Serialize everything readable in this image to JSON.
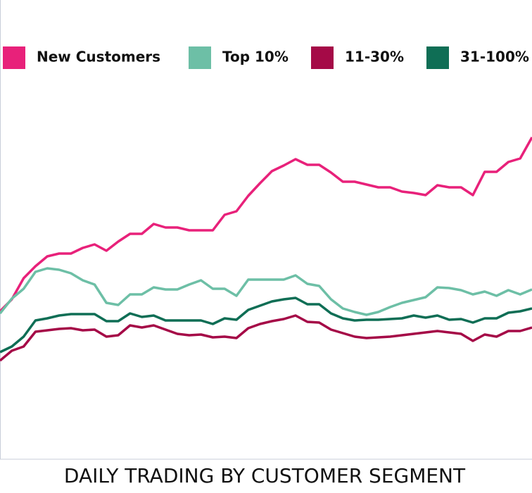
{
  "chart_data": {
    "type": "line",
    "title": "DAILY TRADING BY CUSTOMER SEGMENT",
    "categories": [
      null,
      null,
      null,
      null,
      null,
      null,
      null,
      null,
      null,
      null,
      null,
      null,
      null,
      null,
      null,
      null,
      null,
      null,
      null,
      null,
      null,
      null,
      null,
      null,
      null,
      null,
      null,
      null,
      null,
      null,
      null,
      null,
      null,
      null,
      null,
      null,
      null,
      null,
      null,
      null,
      null,
      null,
      null,
      null,
      null,
      null
    ],
    "ylim": [
      0,
      100
    ],
    "series": [
      {
        "name": "New Customers",
        "color": "#e8217a",
        "values": [
          41.6,
          45,
          51,
          54.4,
          57.2,
          58,
          58,
          59.6,
          60.6,
          58.8,
          61.4,
          63.6,
          63.6,
          66.4,
          65.4,
          65.4,
          64.6,
          64.6,
          64.6,
          69,
          70,
          74.4,
          78,
          81.4,
          83,
          84.8,
          83.2,
          83.2,
          81,
          78.4,
          78.4,
          77.6,
          76.8,
          76.8,
          75.6,
          75.2,
          74.6,
          77.4,
          76.8,
          76.8,
          74.6,
          81.2,
          81.2,
          84,
          85,
          91
        ]
      },
      {
        "name": "Top 10%",
        "color": "#6dbfa6",
        "values": [
          41,
          45.2,
          48,
          52.8,
          53.8,
          53.4,
          52.4,
          50.4,
          49.2,
          44,
          43.4,
          46.4,
          46.4,
          48.4,
          47.8,
          47.8,
          49.2,
          50.4,
          48,
          48,
          46,
          50.6,
          50.6,
          50.6,
          50.6,
          51.8,
          49.4,
          48.8,
          45,
          42.4,
          41.4,
          40.6,
          41.4,
          42.8,
          44,
          44.8,
          45.6,
          48.4,
          48.2,
          47.6,
          46.4,
          47.2,
          46,
          47.6,
          46.4,
          47.8
        ]
      },
      {
        "name": "11-30%",
        "color": "#a50a47",
        "values": [
          27.6,
          30.4,
          31.6,
          35.8,
          36.2,
          36.6,
          36.8,
          36.2,
          36.4,
          34.4,
          34.8,
          37.6,
          37,
          37.6,
          36.4,
          35.2,
          34.8,
          35,
          34.2,
          34.4,
          34,
          36.8,
          38,
          38.8,
          39.4,
          40.4,
          38.6,
          38.4,
          36.4,
          35.4,
          34.4,
          34,
          34.2,
          34.4,
          34.8,
          35.2,
          35.6,
          36,
          35.6,
          35.2,
          33.2,
          35,
          34.4,
          36,
          36,
          37
        ]
      },
      {
        "name": "31-100%",
        "color": "#0f6e55",
        "values": [
          30,
          31.6,
          34.4,
          39,
          39.6,
          40.4,
          40.8,
          40.8,
          40.8,
          38.8,
          38.8,
          41,
          40,
          40.4,
          39,
          39,
          39,
          39,
          38,
          39.6,
          39.2,
          42,
          43.2,
          44.4,
          45,
          45.4,
          43.6,
          43.6,
          41,
          39.6,
          39,
          39.2,
          39.2,
          39.4,
          39.6,
          40.4,
          39.8,
          40.4,
          39.2,
          39.4,
          38.4,
          39.6,
          39.6,
          41.2,
          41.6,
          42.4
        ]
      }
    ]
  }
}
